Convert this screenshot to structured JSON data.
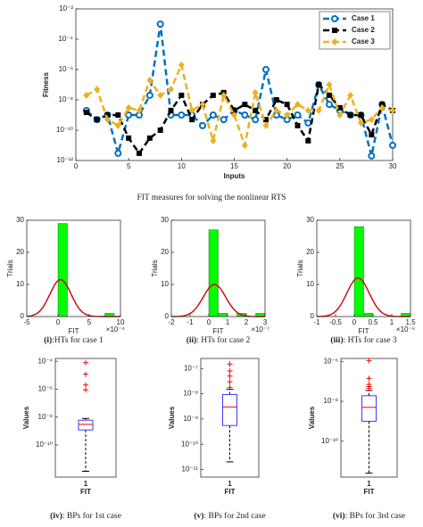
{
  "chart_data": [
    {
      "type": "line",
      "xlabel": "Inputs",
      "ylabel": "Fitness",
      "caption": "FIT measures for solving the nonlinear RTS",
      "x": [
        1,
        2,
        3,
        4,
        5,
        6,
        7,
        8,
        9,
        10,
        11,
        12,
        13,
        14,
        15,
        16,
        17,
        18,
        19,
        20,
        21,
        22,
        23,
        24,
        25,
        26,
        27,
        28,
        29,
        30
      ],
      "xlim": [
        0,
        30
      ],
      "xticks": [
        0,
        5,
        10,
        15,
        20,
        25,
        30
      ],
      "ylog": true,
      "ylim": [
        1e-12,
        0.01
      ],
      "yticks": [
        {
          "value": 1e-12,
          "label": "10⁻¹²"
        },
        {
          "value": 1e-10,
          "label": "10⁻¹⁰"
        },
        {
          "value": 1e-08,
          "label": "10⁻⁸"
        },
        {
          "value": 1e-06,
          "label": "10⁻⁶"
        },
        {
          "value": 0.0001,
          "label": "10⁻⁴"
        },
        {
          "value": 0.01,
          "label": "10⁻²"
        }
      ],
      "legend": "upper right",
      "series": [
        {
          "name": "Case 1",
          "color": "#0072bd",
          "marker": "circle",
          "values": [
            2e-09,
            5e-10,
            1e-09,
            3e-12,
            1e-09,
            1e-09,
            2e-08,
            0.001,
            1e-09,
            1e-09,
            1e-09,
            2e-10,
            1e-09,
            5e-10,
            2e-09,
            1e-09,
            5e-10,
            1e-06,
            1e-09,
            5e-10,
            1e-09,
            3e-10,
            1e-07,
            5e-09,
            2e-09,
            1e-09,
            1e-09,
            2e-12,
            5e-09,
            1e-11
          ]
        },
        {
          "name": "Case 2",
          "color": "#000000",
          "marker": "square",
          "values": [
            1.5e-09,
            5e-10,
            1e-09,
            1e-09,
            3e-11,
            3e-12,
            3e-11,
            1e-10,
            2e-09,
            2e-08,
            5e-10,
            5e-09,
            2e-08,
            3e-08,
            2e-09,
            5e-09,
            2e-09,
            5e-10,
            1e-08,
            5e-09,
            2e-10,
            2e-11,
            1e-07,
            2e-08,
            3e-09,
            1e-09,
            1e-09,
            5e-11,
            5e-09,
            2e-09
          ]
        },
        {
          "name": "Case 3",
          "color": "#edb120",
          "marker": "diamond",
          "values": [
            2e-08,
            5e-08,
            5e-10,
            2e-10,
            3e-09,
            2e-09,
            2e-07,
            2e-08,
            5e-08,
            2e-06,
            2e-09,
            5e-09,
            2e-11,
            2e-08,
            1e-09,
            1e-11,
            3e-08,
            2e-10,
            2e-09,
            1e-09,
            5e-09,
            2e-09,
            2e-09,
            1e-07,
            1e-09,
            2e-08,
            3e-10,
            5e-10,
            3e-09,
            2e-09
          ]
        }
      ]
    },
    {
      "type": "histogram",
      "xlabel": "FIT",
      "ylabel": "Trials",
      "x_multiplier": "×10⁻⁴",
      "caption_label": "(i)",
      "caption": ":HTs for case 1",
      "bins": [
        0,
        1.5,
        3,
        4.5,
        6,
        7.5,
        9
      ],
      "counts": [
        29,
        0,
        0,
        0,
        0,
        1
      ],
      "color": "#00ff00",
      "xlim": [
        -5,
        10
      ],
      "xticks": [
        -5,
        0,
        5,
        10
      ],
      "ylim": [
        0,
        30
      ],
      "yticks": [
        0,
        10,
        20,
        30
      ],
      "fit_curve": {
        "color": "#d00000",
        "peak": 11.5,
        "mean": 0.4,
        "sd": 1.7
      }
    },
    {
      "type": "histogram",
      "xlabel": "FIT",
      "ylabel": "Trials",
      "x_multiplier": "×10⁻⁷",
      "caption_label": "(ii)",
      "caption": ": HTs for case 2",
      "bins": [
        0,
        0.5,
        1,
        1.5,
        2,
        2.5,
        3
      ],
      "counts": [
        27,
        1,
        0,
        1,
        0,
        1
      ],
      "color": "#00ff00",
      "xlim": [
        -2,
        3
      ],
      "xticks": [
        -2,
        -1,
        0,
        1,
        2,
        3
      ],
      "ylim": [
        0,
        30
      ],
      "yticks": [
        0,
        10,
        20,
        30
      ],
      "fit_curve": {
        "color": "#d00000",
        "peak": 10,
        "mean": 0.3,
        "sd": 0.6
      }
    },
    {
      "type": "histogram",
      "xlabel": "FIT",
      "ylabel": "Trials",
      "x_multiplier": "×10⁻⁶",
      "caption_label": "(iii)",
      "caption": ": HTs for case 3",
      "bins": [
        0,
        0.25,
        0.5,
        0.75,
        1,
        1.25,
        1.5
      ],
      "counts": [
        28,
        1,
        0,
        0,
        0,
        1
      ],
      "color": "#00ff00",
      "xlim": [
        -1,
        1.5
      ],
      "xticks": [
        -1,
        -0.5,
        0,
        0.5,
        1,
        1.5
      ],
      "ylim": [
        0,
        30
      ],
      "yticks": [
        0,
        10,
        20,
        30
      ],
      "fit_curve": {
        "color": "#d00000",
        "peak": 12,
        "mean": 0.1,
        "sd": 0.3
      }
    },
    {
      "type": "box",
      "xlabel": "FIT",
      "ylabel": "Values",
      "caption_label": "(iv)",
      "caption": ": BPs for 1st case",
      "categories": [
        "1"
      ],
      "ylog": true,
      "ylim": [
        5e-13,
        0.00016
      ],
      "yticks": [
        {
          "value": 1e-10,
          "label": "10⁻¹⁰"
        },
        {
          "value": 1e-08,
          "label": "10⁻⁸"
        },
        {
          "value": 1e-06,
          "label": "10⁻⁶"
        },
        {
          "value": 0.0001,
          "label": "10⁻⁴"
        }
      ],
      "box_color": "#3b3bff",
      "median_color": "#ff0000",
      "whisker_low": 1.3e-12,
      "q1": 1.2e-09,
      "median": 3e-09,
      "q3": 6e-09,
      "whisker_high": 8e-09,
      "outliers": [
        8e-05,
        1.2e-05,
        2e-06,
        9e-07
      ]
    },
    {
      "type": "box",
      "xlabel": "FIT",
      "ylabel": "Values",
      "caption_label": "(v)",
      "caption": ": BPs for 2nd case",
      "categories": [
        "1"
      ],
      "ylog": true,
      "ylim": [
        5e-12,
        2.5e-07
      ],
      "yticks": [
        {
          "value": 1e-11,
          "label": "10⁻¹¹"
        },
        {
          "value": 1e-10,
          "label": "10⁻¹⁰"
        },
        {
          "value": 1e-09,
          "label": "10⁻⁹"
        },
        {
          "value": 1e-08,
          "label": "10⁻⁸"
        },
        {
          "value": 1e-07,
          "label": "10⁻⁷"
        }
      ],
      "box_color": "#3b3bff",
      "median_color": "#ff0000",
      "whisker_low": 2e-11,
      "q1": 5.5e-10,
      "median": 3e-09,
      "q3": 9.3e-09,
      "whisker_high": 1.5e-08,
      "outliers": [
        1.5e-07,
        8e-08,
        5e-08,
        3e-08,
        1.8e-08
      ]
    },
    {
      "type": "box",
      "xlabel": "FIT",
      "ylabel": "Values",
      "caption_label": "(vi)",
      "caption": ": BPs for 3rd case",
      "categories": [
        "1"
      ],
      "ylog": true,
      "ylim": [
        1.6e-12,
        1.4e-06
      ],
      "yticks": [
        {
          "value": 1e-10,
          "label": "10⁻¹⁰"
        },
        {
          "value": 1e-08,
          "label": "10⁻⁸"
        },
        {
          "value": 1e-06,
          "label": "10⁻⁶"
        }
      ],
      "box_color": "#3b3bff",
      "median_color": "#ff0000",
      "whisker_low": 2.5e-12,
      "q1": 1e-09,
      "median": 5e-09,
      "q3": 1.9e-08,
      "whisker_high": 3.5e-08,
      "outliers": [
        1.1e-06,
        1.4e-07,
        7e-08,
        5.5e-08,
        4.5e-08
      ]
    }
  ]
}
